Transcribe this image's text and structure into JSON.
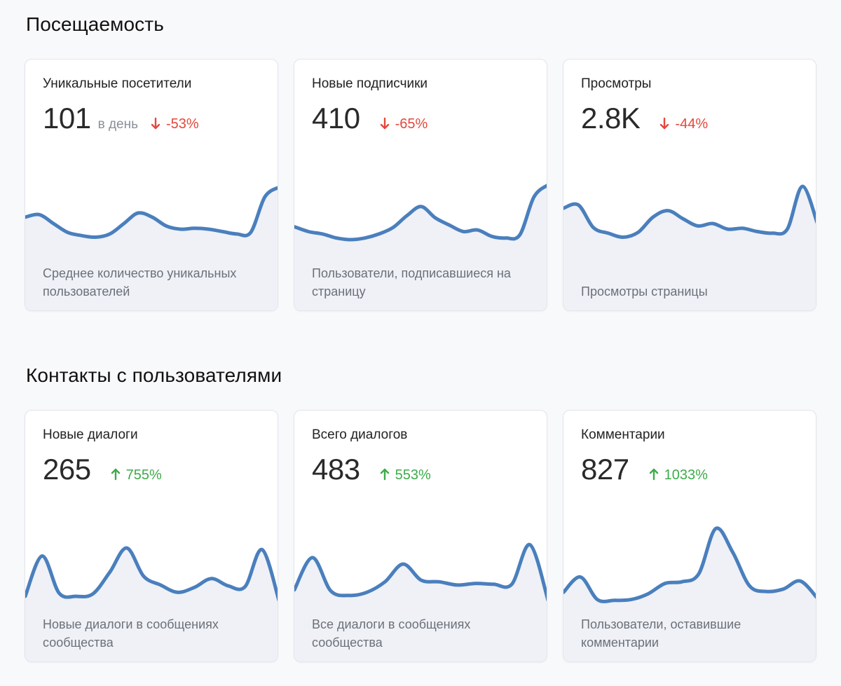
{
  "sections": [
    {
      "title": "Посещаемость",
      "cards": [
        {
          "title": "Уникальные посетители",
          "value": "101",
          "unit": "в день",
          "delta": "-53%",
          "direction": "down",
          "description": "Среднее количество уникальных пользователей",
          "series": [
            55,
            58,
            47,
            36,
            32,
            30,
            34,
            47,
            60,
            55,
            44,
            40,
            41,
            40,
            37,
            34,
            36,
            80,
            92
          ]
        },
        {
          "title": "Новые подписчики",
          "value": "410",
          "unit": "",
          "delta": "-65%",
          "direction": "down",
          "description": "Пользователи, подписавшиеся на страницу",
          "series": [
            43,
            37,
            34,
            29,
            27,
            29,
            34,
            42,
            57,
            68,
            54,
            45,
            37,
            39,
            31,
            29,
            33,
            80,
            95
          ]
        },
        {
          "title": "Просмотры",
          "value": "2.8K",
          "unit": "",
          "delta": "-44%",
          "direction": "down",
          "description": "Просмотры страницы",
          "series": [
            66,
            70,
            42,
            35,
            30,
            36,
            55,
            63,
            53,
            44,
            47,
            40,
            41,
            37,
            35,
            40,
            93,
            48
          ]
        }
      ]
    },
    {
      "title": "Контакты с пользователями",
      "cards": [
        {
          "title": "Новые диалоги",
          "value": "265",
          "unit": "",
          "delta": "755%",
          "direction": "up",
          "description": "Новые диалоги в сообщениях сообщества",
          "series": [
            20,
            70,
            24,
            20,
            23,
            50,
            80,
            45,
            34,
            25,
            31,
            42,
            33,
            32,
            78,
            15
          ]
        },
        {
          "title": "Всего диалогов",
          "value": "483",
          "unit": "",
          "delta": "553%",
          "direction": "up",
          "description": "Все диалоги в сообщениях сообщества",
          "series": [
            28,
            68,
            27,
            21,
            25,
            38,
            60,
            40,
            38,
            34,
            36,
            35,
            35,
            84,
            15
          ]
        },
        {
          "title": "Комментарии",
          "value": "827",
          "unit": "",
          "delta": "1033%",
          "direction": "up",
          "description": "Пользователи, оставившие комментарии",
          "series": [
            25,
            44,
            16,
            15,
            16,
            23,
            36,
            38,
            48,
            104,
            75,
            33,
            26,
            29,
            39,
            18
          ]
        }
      ]
    }
  ],
  "colors": {
    "line": "#4a7fbd",
    "area": "#eff1f6",
    "negative": "#e5473b",
    "positive": "#3dab4a"
  },
  "icons": {
    "down": "arrow-down-icon",
    "up": "arrow-up-icon"
  }
}
